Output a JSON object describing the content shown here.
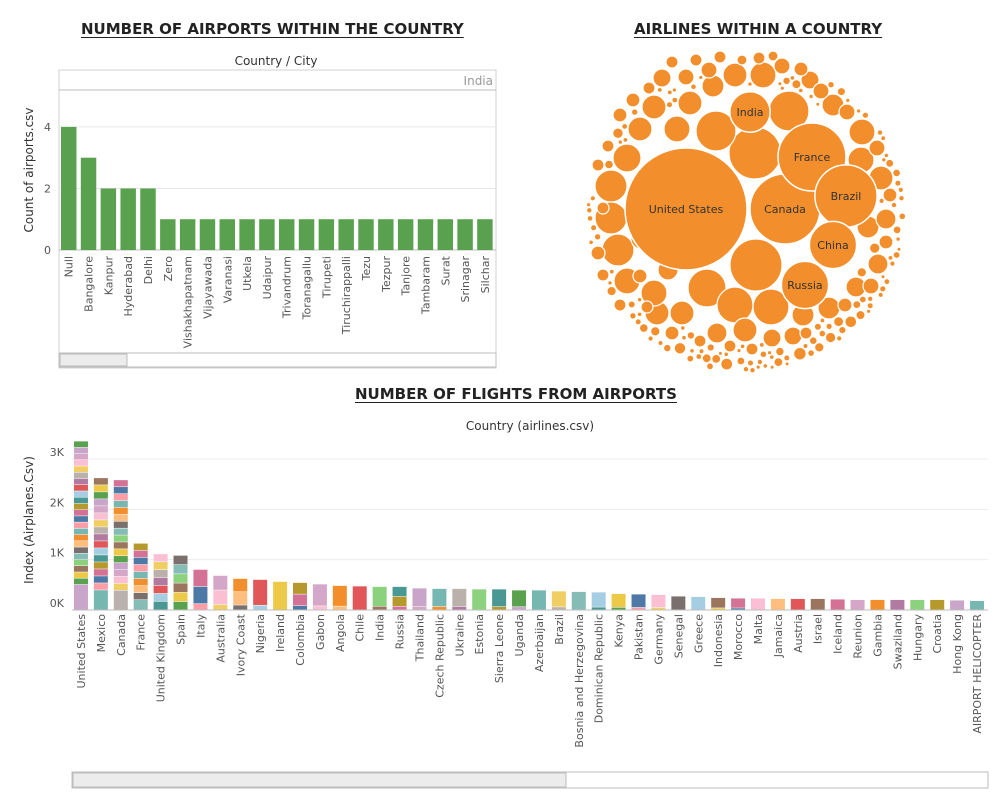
{
  "titles": {
    "airports": "NUMBER OF AIRPORTS WITHIN THE COUNTRY",
    "airlines": "AIRLINES WITHIN A COUNTRY",
    "flights": "NUMBER OF FLIGHTS FROM AIRPORTS"
  },
  "chart_data": [
    {
      "type": "bar",
      "title": "NUMBER OF AIRPORTS WITHIN THE COUNTRY",
      "header": "Country  /  City",
      "pane_label": "India",
      "ylabel": "Count of airports.csv",
      "yticks": [
        0,
        2,
        4
      ],
      "ylim": [
        0,
        5.2
      ],
      "bar_color": "#59a14f",
      "grid": true,
      "categories": [
        "Null",
        "Bangalore",
        "Kanpur",
        "Hyderabad",
        "Delhi",
        "Zero",
        "Vishakhapatnam",
        "Vijayawada",
        "Varanasi",
        "Utkela",
        "Udaipur",
        "Trivandrum",
        "Toranagallu",
        "Tirupeti",
        "Tiruchirappalli",
        "Tezu",
        "Tezpur",
        "Tanjore",
        "Tambaram",
        "Surat",
        "Srinagar",
        "Silchar"
      ],
      "values": [
        4,
        3,
        2,
        2,
        2,
        1,
        1,
        1,
        1,
        1,
        1,
        1,
        1,
        1,
        1,
        1,
        1,
        1,
        1,
        1,
        1,
        1
      ]
    },
    {
      "type": "bubble",
      "title": "AIRLINES WITHIN A COUNTRY",
      "color": "#f28e2b",
      "labeled": [
        {
          "label": "United States",
          "value": 100
        },
        {
          "label": "Canada",
          "value": 33
        },
        {
          "label": "India",
          "value": 11
        },
        {
          "label": "France",
          "value": 31
        },
        {
          "label": "Brazil",
          "value": 26
        },
        {
          "label": "China",
          "value": 15
        },
        {
          "label": "Russia",
          "value": 15
        }
      ]
    },
    {
      "type": "bar",
      "stacked": true,
      "title": "NUMBER OF FLIGHTS FROM AIRPORTS",
      "header": "Country (airlines.csv)",
      "ylabel": "Index (Airplanes.Csv)",
      "yticks": [
        0,
        1000,
        2000,
        3000
      ],
      "ytick_labels": [
        "0K",
        "1K",
        "2K",
        "3K"
      ],
      "ylim": [
        0,
        3500
      ],
      "grid": true,
      "categories": [
        "United States",
        "Mexico",
        "Canada",
        "France",
        "United Kingdom",
        "Spain",
        "Italy",
        "Australia",
        "Ivory Coast",
        "Nigeria",
        "Ireland",
        "Colombia",
        "Gabon",
        "Angola",
        "Chile",
        "India",
        "Russia",
        "Thailand",
        "Czech Republic",
        "Ukraine",
        "Estonia",
        "Sierra Leone",
        "Uganda",
        "Azerbaijan",
        "Brazil",
        "Bosnia and Herzegovina",
        "Dominican Republic",
        "Kenya",
        "Pakistan",
        "Germany",
        "Senegal",
        "Greece",
        "Indonesia",
        "Morocco",
        "Malta",
        "Jamaica",
        "Austria",
        "Israel",
        "Iceland",
        "Reunion",
        "Gambia",
        "Swaziland",
        "Hungary",
        "Croatia",
        "Hong Kong",
        "AIRPORT HELICOPTER"
      ],
      "values": [
        3350,
        2620,
        2580,
        1320,
        1110,
        1080,
        800,
        680,
        620,
        600,
        560,
        540,
        510,
        480,
        470,
        460,
        460,
        430,
        420,
        420,
        410,
        410,
        390,
        390,
        370,
        360,
        350,
        320,
        310,
        300,
        270,
        260,
        240,
        230,
        230,
        220,
        220,
        220,
        210,
        200,
        200,
        200,
        200,
        200,
        190,
        180
      ],
      "segments": [
        24,
        17,
        17,
        9,
        7,
        6,
        3,
        3,
        3,
        2,
        1,
        3,
        2,
        2,
        1,
        2,
        3,
        2,
        2,
        2,
        1,
        2,
        2,
        1,
        2,
        1,
        2,
        2,
        2,
        2,
        1,
        1,
        2,
        2,
        1,
        1,
        1,
        1,
        1,
        1,
        1,
        1,
        1,
        1,
        1,
        1
      ]
    }
  ]
}
